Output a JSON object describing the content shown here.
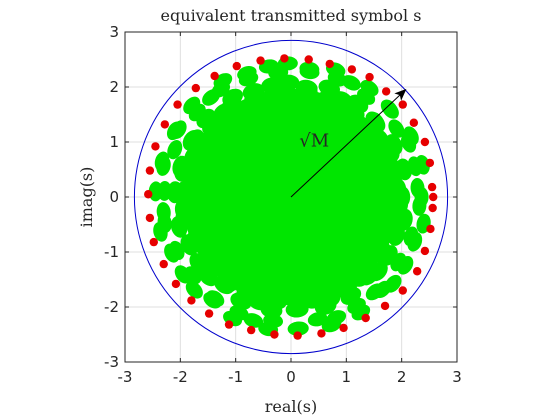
{
  "chart_data": {
    "type": "scatter",
    "title": "equivalent transmitted symbol s",
    "xlabel": "real(s)",
    "ylabel": "imag(s)",
    "xlim": [
      -3,
      3
    ],
    "ylim": [
      -3,
      3
    ],
    "xticks": [
      -3,
      -2,
      -1,
      0,
      1,
      2,
      3
    ],
    "yticks": [
      -3,
      -2,
      -1,
      0,
      1,
      2,
      3
    ],
    "grid": true,
    "circle_radius": 2.83,
    "annotation": {
      "text": "√M",
      "arrow_from": [
        0,
        0
      ],
      "arrow_to": [
        2.06,
        1.94
      ]
    },
    "colors": {
      "cloud": "#00e600",
      "outer_points": "#e60000",
      "circle": "#0000cc",
      "arrow": "#000000"
    },
    "series": [
      {
        "kind": "cloud",
        "points_inner_radius": 1.75,
        "points_outer_radius": 2.45,
        "blob_count": 64
      },
      {
        "kind": "outer_points",
        "count": 40,
        "radius": 2.55,
        "points": [
          [
            2.55,
            0.18
          ],
          [
            2.51,
            0.62
          ],
          [
            2.42,
            1.0
          ],
          [
            2.22,
            1.35
          ],
          [
            2.02,
            1.68
          ],
          [
            1.72,
            1.92
          ],
          [
            1.42,
            2.18
          ],
          [
            1.1,
            2.32
          ],
          [
            0.7,
            2.42
          ],
          [
            0.32,
            2.5
          ],
          [
            -0.12,
            2.52
          ],
          [
            -0.55,
            2.48
          ],
          [
            -0.98,
            2.38
          ],
          [
            -1.38,
            2.2
          ],
          [
            -1.72,
            1.98
          ],
          [
            -2.05,
            1.68
          ],
          [
            -2.28,
            1.32
          ],
          [
            -2.45,
            0.92
          ],
          [
            -2.55,
            0.48
          ],
          [
            -2.58,
            0.05
          ],
          [
            -2.55,
            -0.38
          ],
          [
            -2.48,
            -0.82
          ],
          [
            -2.3,
            -1.22
          ],
          [
            -2.08,
            -1.58
          ],
          [
            -1.8,
            -1.88
          ],
          [
            -1.48,
            -2.12
          ],
          [
            -1.12,
            -2.32
          ],
          [
            -0.72,
            -2.42
          ],
          [
            -0.3,
            -2.5
          ],
          [
            0.12,
            -2.52
          ],
          [
            0.55,
            -2.48
          ],
          [
            0.95,
            -2.38
          ],
          [
            1.35,
            -2.2
          ],
          [
            1.7,
            -1.98
          ],
          [
            2.02,
            -1.7
          ],
          [
            2.28,
            -1.35
          ],
          [
            2.42,
            -0.98
          ],
          [
            2.52,
            -0.58
          ],
          [
            2.56,
            -0.2
          ],
          [
            2.57,
            0.0
          ]
        ]
      }
    ]
  }
}
